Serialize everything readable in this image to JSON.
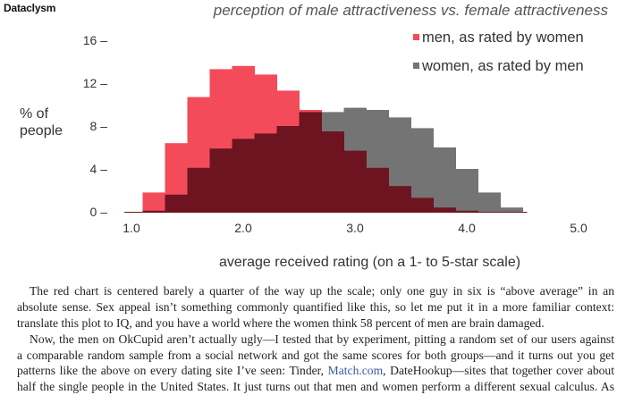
{
  "header": {
    "brand": "Dataclysm",
    "title": "perception of male attractiveness vs. female attractiveness"
  },
  "chart_data": {
    "type": "bar",
    "title": "perception of male attractiveness vs. female attractiveness",
    "xlabel": "average received rating (on a 1- to 5-star scale)",
    "ylabel": "% of people",
    "xlim": [
      1.0,
      5.0
    ],
    "ylim": [
      0,
      16
    ],
    "xticks": [
      "1.0",
      "2.0",
      "3.0",
      "4.0",
      "5.0"
    ],
    "yticks": [
      "0",
      "4",
      "8",
      "12",
      "16"
    ],
    "bin_width": 0.2,
    "bin_centers": [
      1.2,
      1.4,
      1.6,
      1.8,
      2.0,
      2.2,
      2.4,
      2.6,
      2.8,
      3.0,
      3.2,
      3.4,
      3.6,
      3.8,
      4.0,
      4.2,
      4.4
    ],
    "legend_position": "top-right",
    "grid": false,
    "series": [
      {
        "name": "men, as rated by women",
        "color": "#f44b5b",
        "values": [
          1.8,
          6.4,
          10.7,
          13.3,
          13.6,
          12.8,
          11.3,
          9.5,
          7.5,
          5.7,
          4.1,
          2.4,
          1.3,
          0.4,
          0.1,
          0,
          0
        ]
      },
      {
        "name": "women, as rated by men",
        "color": "#747474",
        "values": [
          0.1,
          1.6,
          4.1,
          5.9,
          6.8,
          7.3,
          8.0,
          9.3,
          9.3,
          9.7,
          9.5,
          8.8,
          7.8,
          6.0,
          4.0,
          1.8,
          0.4
        ]
      }
    ],
    "overlap_color": "#6e1420"
  },
  "text": {
    "paragraphs": [
      {
        "lines": [
          "The red chart is centered barely a quarter of the way up the scale; only one guy in six is “above average” in an",
          "absolute sense. Sex appeal isn’t something commonly quantified like this, so let me put it in a more familiar context:",
          "translate this plot to IQ, and you have a world where the women think 58 percent of men are brain damaged."
        ]
      },
      {
        "lines": [
          "Now, the men on OkCupid aren’t actually ugly—I tested that by experiment, pitting a random set of our users against",
          "a comparable random sample from a social network and got the same scores for both groups—and it turns out you get",
          "half the single people in the United States. It just turns out that men and women perform a different sexual calculus. As"
        ]
      }
    ],
    "line6_before": "patterns like the above on every dating site I’ve seen: Tinder, ",
    "line6_link": "Match.com",
    "line6_after": ", DateHookup—sites that together cover about"
  }
}
